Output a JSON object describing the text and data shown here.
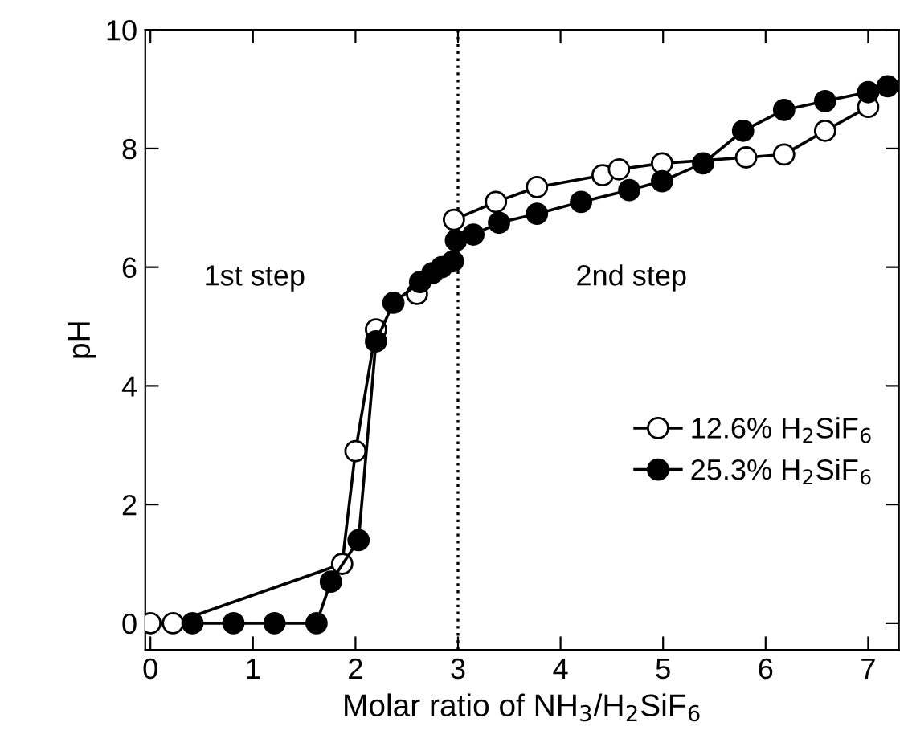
{
  "chart_data": {
    "type": "line",
    "xlabel": "Molar ratio of NH$_{3}$/H$_{2}$SiF$_{6}$",
    "ylabel": "pH",
    "series": [
      {
        "name": "12.6% H$_{2}$SiF$_{6}$",
        "color": "#ffffff",
        "x": [
          0,
          0.22,
          1.87,
          2.0,
          2.2,
          2.4,
          2.6,
          2.8,
          2.95,
          2.96,
          3.37,
          3.77,
          4.41,
          4.57,
          4.99,
          5.81,
          6.18,
          6.58,
          7.0
        ],
        "values": [
          0,
          0,
          1.0,
          2.9,
          4.95,
          null,
          5.55,
          null,
          null,
          6.8,
          7.1,
          7.35,
          7.55,
          7.65,
          7.75,
          7.85,
          7.9,
          8.3,
          8.7
        ]
      },
      {
        "name": "25.3% H$_{2}$SiF$_{6}$",
        "color": "#000000",
        "x": [
          0.41,
          0.81,
          1.21,
          1.62,
          1.76,
          2.03,
          2.2,
          2.37,
          2.63,
          2.75,
          2.84,
          2.95,
          2.98,
          3.15,
          3.4,
          3.77,
          4.2,
          4.67,
          4.99,
          5.39,
          5.78,
          6.18,
          6.58,
          7.0,
          7.19
        ],
        "values": [
          0,
          0,
          0,
          0,
          0.7,
          1.4,
          4.75,
          5.4,
          5.75,
          5.9,
          6.0,
          6.1,
          6.45,
          6.55,
          6.75,
          6.9,
          7.1,
          7.3,
          7.45,
          7.75,
          8.3,
          8.65,
          8.8,
          8.95,
          9.05
        ]
      }
    ],
    "xlim": [
      -0.05,
      7.3
    ],
    "ylim": [
      -0.45,
      10
    ],
    "xticks": [
      0,
      1,
      2,
      3,
      4,
      5,
      6,
      7
    ],
    "yticks": [
      0,
      2,
      4,
      6,
      8,
      10
    ],
    "ref_lines": [
      {
        "axis": "x",
        "value": 3,
        "line_style": "dotted",
        "color": "#000000"
      }
    ],
    "annotations": [
      "1st step",
      "2nd step"
    ],
    "marker": "circle",
    "line_style": "solid",
    "legend": "right",
    "grid": false
  }
}
